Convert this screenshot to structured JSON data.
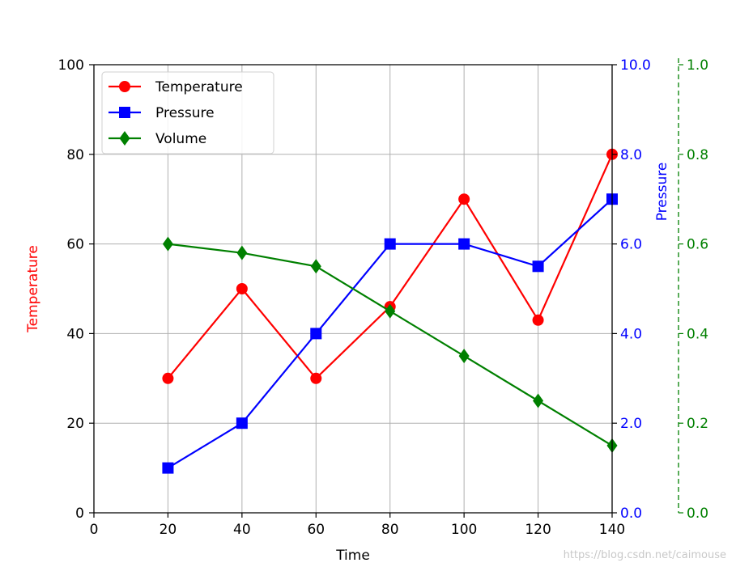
{
  "chart_data": {
    "type": "line",
    "title": "",
    "xlabel": "Time",
    "x": [
      20,
      40,
      60,
      80,
      100,
      120,
      140
    ],
    "xlim": [
      0,
      140
    ],
    "xticks": [
      "0",
      "20",
      "40",
      "60",
      "80",
      "100",
      "120",
      "140"
    ],
    "grid": true,
    "legend_position": "top-left",
    "axes": {
      "left": {
        "label": "Temperature",
        "color": "#ff0000",
        "range": [
          0,
          100
        ],
        "ticks": [
          "0",
          "20",
          "40",
          "60",
          "80",
          "100"
        ]
      },
      "right_inner": {
        "label": "Pressure",
        "color": "#0000ff",
        "range": [
          0.0,
          10.0
        ],
        "ticks": [
          "0.0",
          "2.0",
          "4.0",
          "6.0",
          "8.0",
          "10.0"
        ]
      },
      "right_outer": {
        "label": "",
        "color": "#008000",
        "range": [
          0.0,
          1.0
        ],
        "ticks": [
          "0.0",
          "0.2",
          "0.4",
          "0.6",
          "0.8",
          "1.0"
        ],
        "spine_style": "dashed"
      }
    },
    "series": [
      {
        "name": "Temperature",
        "axis": "left",
        "marker": "circle",
        "color": "#ff0000",
        "values": [
          30,
          50,
          30,
          46,
          70,
          43,
          80
        ]
      },
      {
        "name": "Pressure",
        "axis": "right_inner",
        "marker": "square",
        "color": "#0000ff",
        "values": [
          1.0,
          2.0,
          4.0,
          6.0,
          6.0,
          5.5,
          7.0
        ]
      },
      {
        "name": "Volume",
        "axis": "right_outer",
        "marker": "diamond",
        "color": "#008000",
        "values": [
          0.6,
          0.58,
          0.55,
          0.45,
          0.35,
          0.25,
          0.15
        ]
      }
    ]
  },
  "watermark": {
    "text": "https://blog.csdn.net/caimouse"
  }
}
